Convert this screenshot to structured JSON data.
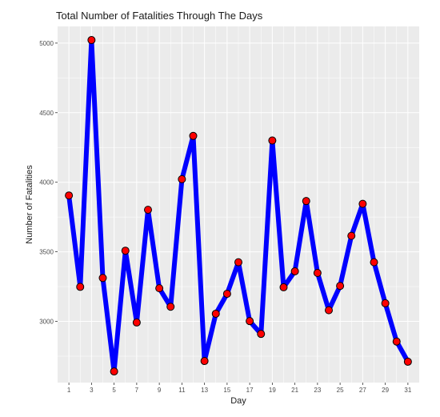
{
  "chart_data": {
    "type": "line",
    "title": "Total Number of Fatalities Through The Days",
    "xlabel": "Day",
    "ylabel": "Number of Fatalities",
    "x": [
      1,
      2,
      3,
      4,
      5,
      6,
      7,
      8,
      9,
      10,
      11,
      12,
      13,
      14,
      15,
      16,
      17,
      18,
      19,
      20,
      21,
      22,
      23,
      24,
      25,
      26,
      27,
      28,
      29,
      30,
      31
    ],
    "values": [
      3905,
      3248,
      5022,
      3312,
      2640,
      3508,
      2992,
      3802,
      3238,
      3105,
      4022,
      4333,
      2715,
      3055,
      3198,
      3425,
      3002,
      2910,
      4300,
      3245,
      3360,
      3865,
      3348,
      3080,
      3255,
      3615,
      3845,
      3425,
      3130,
      2855,
      2710
    ],
    "xticks": [
      1,
      3,
      5,
      7,
      9,
      11,
      13,
      15,
      17,
      19,
      21,
      23,
      25,
      27,
      29,
      31
    ],
    "yticks": [
      3000,
      3500,
      4000,
      4500,
      5000
    ],
    "xlim": [
      0,
      32
    ],
    "ylim": [
      2560,
      5120
    ],
    "grid": true,
    "colors": {
      "line": "#0000ff",
      "point_fill": "#ff0000",
      "point_stroke": "#000000",
      "panel": "#ebebeb",
      "grid": "#ffffff"
    }
  }
}
